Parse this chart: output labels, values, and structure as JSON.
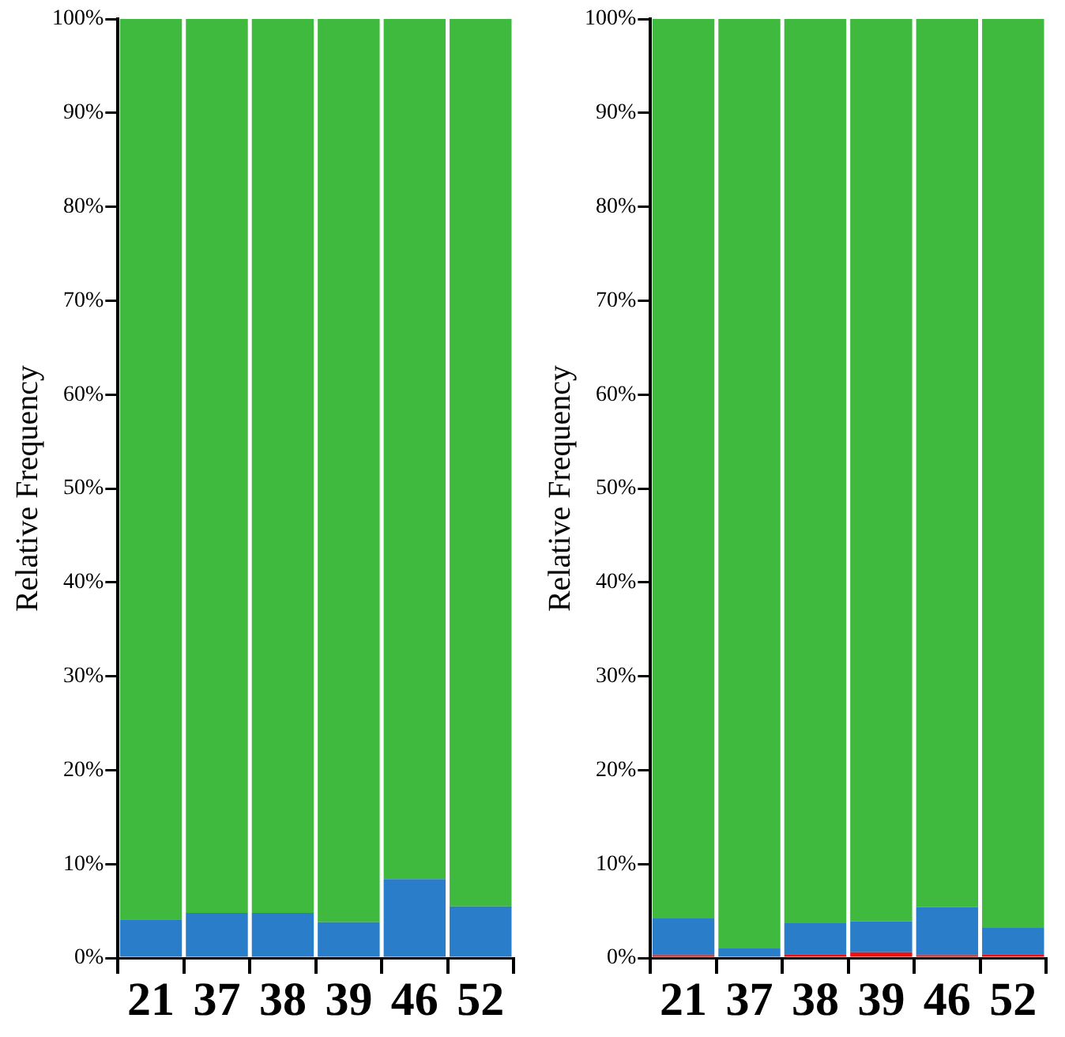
{
  "chart_data": [
    {
      "type": "bar",
      "stacked": true,
      "ylabel": "Relative Frequency",
      "categories": [
        "21",
        "37",
        "38",
        "39",
        "46",
        "52"
      ],
      "ylim": [
        0,
        100
      ],
      "yticks": [
        {
          "value": 0,
          "label": "0%"
        },
        {
          "value": 10,
          "label": "10%"
        },
        {
          "value": 20,
          "label": "20%"
        },
        {
          "value": 30,
          "label": "30%"
        },
        {
          "value": 40,
          "label": "40%"
        },
        {
          "value": 50,
          "label": "50%"
        },
        {
          "value": 60,
          "label": "60%"
        },
        {
          "value": 70,
          "label": "70%"
        },
        {
          "value": 80,
          "label": "80%"
        },
        {
          "value": 90,
          "label": "90%"
        },
        {
          "value": 100,
          "label": "100%"
        }
      ],
      "legend": false,
      "series": [
        {
          "color": "#2a7dc9",
          "values": [
            4.1,
            4.8,
            4.8,
            3.8,
            8.4,
            5.5
          ]
        },
        {
          "color": "#40b93f",
          "values": [
            95.9,
            95.2,
            95.2,
            96.2,
            91.6,
            94.5
          ]
        }
      ]
    },
    {
      "type": "bar",
      "stacked": true,
      "ylabel": "Relative Frequency",
      "categories": [
        "21",
        "37",
        "38",
        "39",
        "46",
        "52"
      ],
      "ylim": [
        0,
        100
      ],
      "yticks": [
        {
          "value": 0,
          "label": "0%"
        },
        {
          "value": 10,
          "label": "10%"
        },
        {
          "value": 20,
          "label": "20%"
        },
        {
          "value": 30,
          "label": "30%"
        },
        {
          "value": 40,
          "label": "40%"
        },
        {
          "value": 50,
          "label": "50%"
        },
        {
          "value": 60,
          "label": "60%"
        },
        {
          "value": 70,
          "label": "70%"
        },
        {
          "value": 80,
          "label": "80%"
        },
        {
          "value": 90,
          "label": "90%"
        },
        {
          "value": 100,
          "label": "100%"
        }
      ],
      "legend": false,
      "series": [
        {
          "color": "#ee1111",
          "values": [
            0.3,
            0,
            0.4,
            0.6,
            0.3,
            0.4
          ]
        },
        {
          "color": "#2a7dc9",
          "values": [
            3.9,
            1.0,
            3.3,
            3.3,
            5.1,
            2.8
          ]
        },
        {
          "color": "#40b93f",
          "values": [
            95.8,
            99.0,
            96.3,
            96.1,
            94.6,
            96.8
          ]
        }
      ]
    }
  ]
}
